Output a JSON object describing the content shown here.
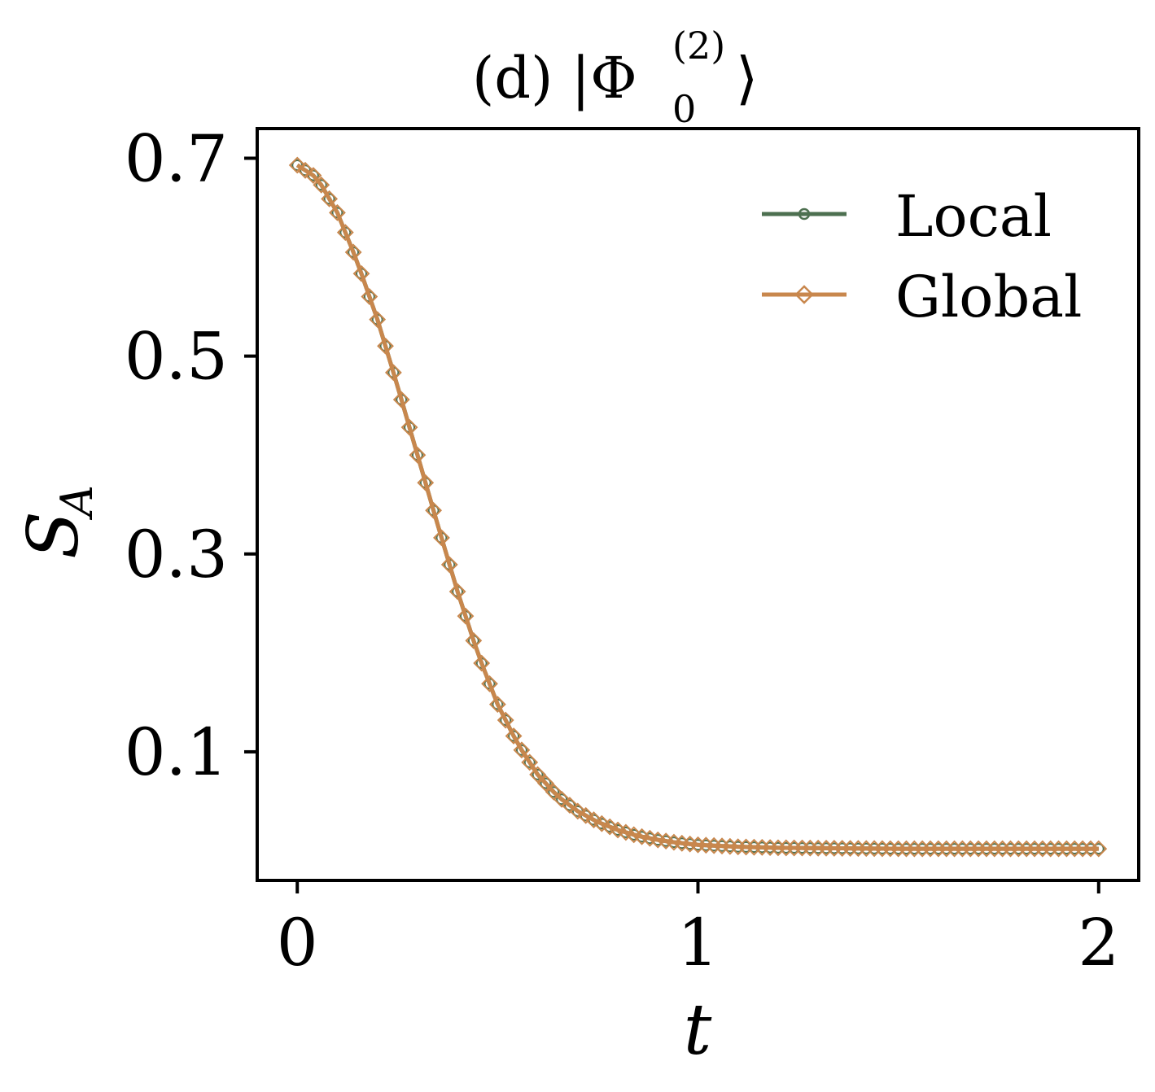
{
  "chart_data": {
    "type": "line",
    "title": {
      "prefix": "(d) |Φ",
      "subscript": "0",
      "superscript": "(2)",
      "suffix": "⟩"
    },
    "xlabel": "t",
    "ylabel": {
      "main": "S",
      "subscript": "A"
    },
    "xlim": [
      -0.1,
      2.1
    ],
    "ylim": [
      -0.03,
      0.73
    ],
    "x_ticks": [
      0,
      1,
      2
    ],
    "y_ticks": [
      0.1,
      0.3,
      0.5,
      0.7
    ],
    "x_tick_labels": [
      "0",
      "1",
      "2"
    ],
    "y_tick_labels": [
      "0.1",
      "0.3",
      "0.5",
      "0.7"
    ],
    "legend_position": "top-right",
    "grid": false,
    "t_start": 0,
    "t_end": 2,
    "t_step": 0.02,
    "curve_knots": [
      [
        0.0,
        0.693
      ],
      [
        0.05,
        0.68
      ],
      [
        0.1,
        0.645
      ],
      [
        0.15,
        0.595
      ],
      [
        0.2,
        0.537
      ],
      [
        0.25,
        0.47
      ],
      [
        0.3,
        0.4
      ],
      [
        0.35,
        0.33
      ],
      [
        0.4,
        0.262
      ],
      [
        0.45,
        0.2
      ],
      [
        0.5,
        0.148
      ],
      [
        0.55,
        0.108
      ],
      [
        0.6,
        0.077
      ],
      [
        0.65,
        0.055
      ],
      [
        0.7,
        0.04
      ],
      [
        0.75,
        0.029
      ],
      [
        0.8,
        0.021
      ],
      [
        0.85,
        0.015
      ],
      [
        0.9,
        0.011
      ],
      [
        0.95,
        0.008
      ],
      [
        1.0,
        0.006
      ],
      [
        1.1,
        0.004
      ],
      [
        1.2,
        0.003
      ],
      [
        1.5,
        0.002
      ],
      [
        2.0,
        0.002
      ]
    ],
    "series": [
      {
        "name": "Local",
        "color": "#4d7050",
        "marker": "circle"
      },
      {
        "name": "Global",
        "color": "#c8874d",
        "marker": "diamond"
      }
    ]
  }
}
